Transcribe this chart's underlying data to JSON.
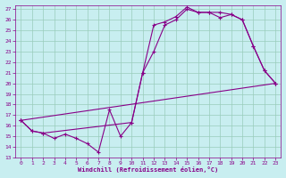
{
  "xlabel": "Windchill (Refroidissement éolien,°C)",
  "background_color": "#c8eef0",
  "grid_color": "#99ccbb",
  "line_color": "#880088",
  "xlim": [
    -0.5,
    23.5
  ],
  "ylim": [
    13,
    27.4
  ],
  "xticks": [
    0,
    1,
    2,
    3,
    4,
    5,
    6,
    7,
    8,
    9,
    10,
    11,
    12,
    13,
    14,
    15,
    16,
    17,
    18,
    19,
    20,
    21,
    22,
    23
  ],
  "yticks": [
    13,
    14,
    15,
    16,
    17,
    18,
    19,
    20,
    21,
    22,
    23,
    24,
    25,
    26,
    27
  ],
  "line1_x": [
    0,
    1,
    2,
    3,
    4,
    5,
    6,
    7,
    8,
    9,
    10,
    11,
    12,
    13,
    14,
    15,
    16,
    17,
    18,
    19,
    20,
    21,
    22,
    23
  ],
  "line1_y": [
    16.5,
    15.5,
    15.3,
    14.8,
    15.2,
    14.8,
    14.3,
    13.5,
    17.5,
    15.0,
    16.3,
    21.0,
    25.5,
    25.8,
    26.3,
    27.2,
    26.7,
    26.7,
    26.2,
    26.5,
    26.0,
    23.5,
    21.2,
    20.0
  ],
  "line2_x": [
    0,
    1,
    2,
    10,
    11,
    12,
    13,
    14,
    15,
    16,
    17,
    18,
    19,
    20,
    21,
    22,
    23
  ],
  "line2_y": [
    16.5,
    15.5,
    15.3,
    16.3,
    21.0,
    23.0,
    25.5,
    26.0,
    27.0,
    26.7,
    26.7,
    26.7,
    26.5,
    26.0,
    23.5,
    21.2,
    20.0
  ],
  "line3_x": [
    0,
    23
  ],
  "line3_y": [
    16.5,
    20.0
  ]
}
